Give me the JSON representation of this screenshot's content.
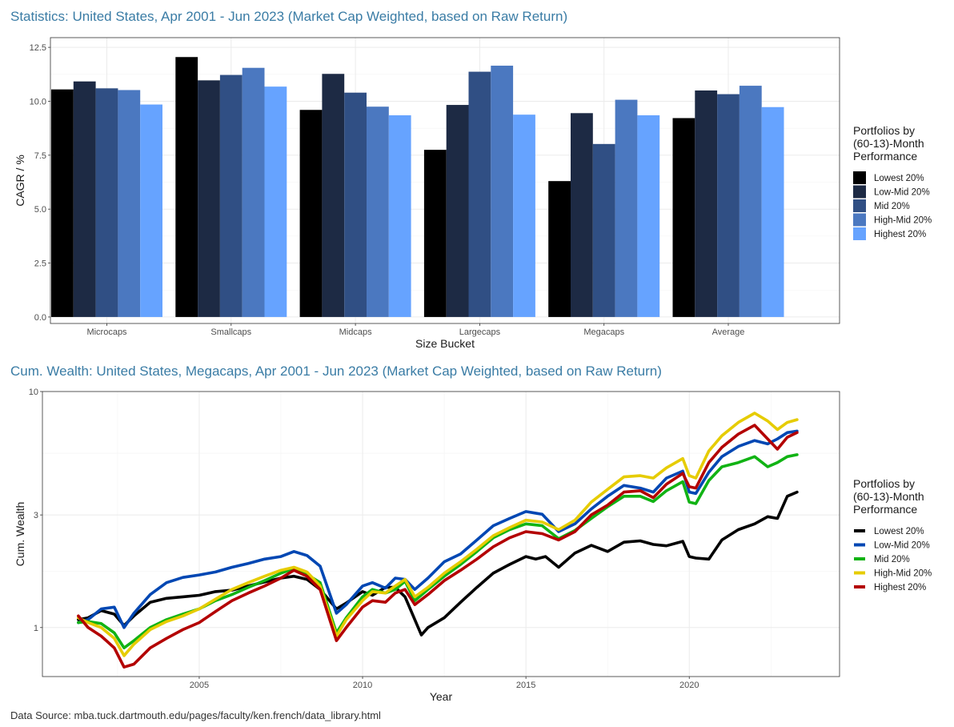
{
  "chart_data": [
    {
      "type": "bar",
      "title": "Statistics: United States, Apr 2001 - Jun 2023 (Market Cap Weighted, based on Raw Return)",
      "xlabel": "Size Bucket",
      "ylabel": "CAGR / %",
      "ylim": [
        -0.3,
        12.95
      ],
      "yticks": [
        "0.0",
        "2.5",
        "5.0",
        "7.5",
        "10.0",
        "12.5"
      ],
      "ytick_values": [
        0,
        2.5,
        5,
        7.5,
        10,
        12.5
      ],
      "categories": [
        "Microcaps",
        "Smallcaps",
        "Midcaps",
        "Largecaps",
        "Megacaps",
        "Average"
      ],
      "grid": true,
      "legend": {
        "title_lines": [
          "Portfolios by",
          "(60-13)-Month",
          "Performance"
        ],
        "placement": "right"
      },
      "series": [
        {
          "name": "Lowest 20%",
          "color": "#000000",
          "values": [
            10.55,
            12.05,
            9.6,
            7.75,
            6.3,
            9.22
          ]
        },
        {
          "name": "Low-Mid 20%",
          "color": "#1d2a44",
          "values": [
            10.92,
            10.97,
            11.27,
            9.83,
            9.45,
            10.5
          ]
        },
        {
          "name": "Mid 20%",
          "color": "#304f84",
          "values": [
            10.6,
            11.22,
            10.4,
            11.37,
            8.02,
            10.33
          ]
        },
        {
          "name": "High-Mid 20%",
          "color": "#4b78c0",
          "values": [
            10.52,
            11.55,
            9.75,
            11.65,
            10.07,
            10.72
          ]
        },
        {
          "name": "Highest 20%",
          "color": "#66a3ff",
          "values": [
            9.85,
            10.68,
            9.35,
            9.38,
            9.35,
            9.73
          ]
        }
      ]
    },
    {
      "type": "line",
      "title": "Cum. Wealth: United States, Megacaps, Apr 2001 - Jun 2023 (Market Cap Weighted, based on Raw Return)",
      "xlabel": "Year",
      "ylabel": "Cum. Wealth",
      "y_scale": "log",
      "ylim": [
        0.62,
        10.0
      ],
      "yticks": [
        "1",
        "3",
        "10"
      ],
      "ytick_values": [
        1,
        3,
        10
      ],
      "xlim": [
        2000.2,
        2024.6
      ],
      "xticks": [
        "2005",
        "2010",
        "2015",
        "2020"
      ],
      "xtick_values": [
        2005,
        2010,
        2015,
        2020
      ],
      "grid": true,
      "legend": {
        "title_lines": [
          "Portfolios by",
          "(60-13)-Month",
          "Performance"
        ],
        "placement": "right"
      },
      "series": [
        {
          "name": "Lowest 20%",
          "color": "#000000",
          "x": [
            2001.3,
            2001.6,
            2002.0,
            2002.4,
            2002.7,
            2003.0,
            2003.5,
            2004.0,
            2004.5,
            2005.0,
            2005.5,
            2006.0,
            2006.5,
            2007.0,
            2007.5,
            2007.9,
            2008.3,
            2008.7,
            2009.2,
            2009.5,
            2010.0,
            2010.3,
            2010.7,
            2011.0,
            2011.3,
            2011.6,
            2011.8,
            2012.0,
            2012.5,
            2013.0,
            2013.5,
            2014.0,
            2014.5,
            2015.0,
            2015.3,
            2015.6,
            2016.0,
            2016.5,
            2017.0,
            2017.5,
            2018.0,
            2018.5,
            2018.9,
            2019.3,
            2019.8,
            2020.0,
            2020.2,
            2020.6,
            2021.0,
            2021.5,
            2022.0,
            2022.4,
            2022.7,
            2023.0,
            2023.3
          ],
          "values": [
            1.08,
            1.1,
            1.18,
            1.14,
            1.02,
            1.12,
            1.28,
            1.33,
            1.35,
            1.37,
            1.42,
            1.44,
            1.5,
            1.56,
            1.62,
            1.65,
            1.6,
            1.45,
            1.2,
            1.27,
            1.42,
            1.37,
            1.48,
            1.48,
            1.35,
            1.08,
            0.93,
            1.0,
            1.1,
            1.28,
            1.48,
            1.7,
            1.85,
            2.0,
            1.95,
            2.0,
            1.8,
            2.07,
            2.23,
            2.1,
            2.3,
            2.33,
            2.25,
            2.22,
            2.32,
            2.0,
            1.97,
            1.95,
            2.35,
            2.6,
            2.75,
            2.95,
            2.9,
            3.6,
            3.75
          ]
        },
        {
          "name": "Low-Mid 20%",
          "color": "#0047b3",
          "x": [
            2001.3,
            2001.6,
            2002.0,
            2002.4,
            2002.7,
            2003.0,
            2003.5,
            2004.0,
            2004.5,
            2005.0,
            2005.5,
            2006.0,
            2006.5,
            2007.0,
            2007.5,
            2007.9,
            2008.3,
            2008.7,
            2009.2,
            2009.5,
            2010.0,
            2010.3,
            2010.7,
            2011.0,
            2011.3,
            2011.6,
            2012.0,
            2012.5,
            2013.0,
            2013.5,
            2014.0,
            2014.5,
            2015.0,
            2015.5,
            2016.0,
            2016.5,
            2017.0,
            2017.5,
            2018.0,
            2018.5,
            2018.9,
            2019.3,
            2019.8,
            2020.0,
            2020.2,
            2020.6,
            2021.0,
            2021.5,
            2022.0,
            2022.4,
            2022.7,
            2023.0,
            2023.3
          ],
          "values": [
            1.05,
            1.08,
            1.2,
            1.22,
            1.0,
            1.15,
            1.38,
            1.55,
            1.63,
            1.67,
            1.72,
            1.8,
            1.87,
            1.95,
            2.0,
            2.1,
            2.02,
            1.82,
            1.15,
            1.25,
            1.5,
            1.55,
            1.47,
            1.62,
            1.6,
            1.45,
            1.62,
            1.9,
            2.05,
            2.35,
            2.7,
            2.9,
            3.1,
            3.02,
            2.55,
            2.75,
            3.18,
            3.6,
            4.0,
            3.9,
            3.75,
            4.3,
            4.6,
            3.75,
            3.7,
            4.55,
            5.3,
            5.85,
            6.2,
            6.0,
            6.3,
            6.7,
            6.8
          ]
        },
        {
          "name": "Mid 20%",
          "color": "#11b314",
          "x": [
            2001.3,
            2001.6,
            2002.0,
            2002.4,
            2002.7,
            2003.0,
            2003.5,
            2004.0,
            2004.5,
            2005.0,
            2005.5,
            2006.0,
            2006.5,
            2007.0,
            2007.5,
            2007.9,
            2008.3,
            2008.7,
            2009.2,
            2009.5,
            2010.0,
            2010.3,
            2010.7,
            2011.0,
            2011.3,
            2011.6,
            2012.0,
            2012.5,
            2013.0,
            2013.5,
            2014.0,
            2014.5,
            2015.0,
            2015.5,
            2016.0,
            2016.5,
            2017.0,
            2017.5,
            2018.0,
            2018.5,
            2018.9,
            2019.3,
            2019.8,
            2020.0,
            2020.2,
            2020.6,
            2021.0,
            2021.5,
            2022.0,
            2022.4,
            2022.7,
            2023.0,
            2023.3
          ],
          "values": [
            1.05,
            1.06,
            1.04,
            0.95,
            0.82,
            0.88,
            1.0,
            1.08,
            1.14,
            1.2,
            1.3,
            1.38,
            1.48,
            1.58,
            1.7,
            1.78,
            1.68,
            1.55,
            0.95,
            1.1,
            1.35,
            1.45,
            1.4,
            1.45,
            1.57,
            1.3,
            1.45,
            1.65,
            1.85,
            2.1,
            2.4,
            2.6,
            2.75,
            2.7,
            2.38,
            2.58,
            2.9,
            3.25,
            3.6,
            3.6,
            3.42,
            3.8,
            4.15,
            3.4,
            3.35,
            4.2,
            4.8,
            5.0,
            5.3,
            4.8,
            5.0,
            5.3,
            5.4
          ]
        },
        {
          "name": "High-Mid 20%",
          "color": "#e6cc00",
          "x": [
            2001.3,
            2001.6,
            2002.0,
            2002.4,
            2002.7,
            2003.0,
            2003.5,
            2004.0,
            2004.5,
            2005.0,
            2005.5,
            2006.0,
            2006.5,
            2007.0,
            2007.5,
            2007.9,
            2008.3,
            2008.7,
            2009.2,
            2009.5,
            2010.0,
            2010.3,
            2010.7,
            2011.0,
            2011.3,
            2011.6,
            2012.0,
            2012.5,
            2013.0,
            2013.5,
            2014.0,
            2014.5,
            2015.0,
            2015.5,
            2016.0,
            2016.5,
            2017.0,
            2017.5,
            2018.0,
            2018.5,
            2018.9,
            2019.3,
            2019.8,
            2020.0,
            2020.2,
            2020.6,
            2021.0,
            2021.5,
            2022.0,
            2022.4,
            2022.7,
            2023.0,
            2023.3
          ],
          "values": [
            1.1,
            1.05,
            1.0,
            0.9,
            0.76,
            0.85,
            0.98,
            1.06,
            1.12,
            1.2,
            1.32,
            1.45,
            1.55,
            1.65,
            1.75,
            1.8,
            1.72,
            1.5,
            0.92,
            1.08,
            1.3,
            1.42,
            1.4,
            1.5,
            1.6,
            1.35,
            1.48,
            1.7,
            1.9,
            2.15,
            2.45,
            2.65,
            2.85,
            2.8,
            2.6,
            2.85,
            3.4,
            3.85,
            4.35,
            4.4,
            4.3,
            4.75,
            5.2,
            4.4,
            4.3,
            5.6,
            6.5,
            7.4,
            8.1,
            7.5,
            6.9,
            7.4,
            7.6
          ]
        },
        {
          "name": "Highest 20%",
          "color": "#b30000",
          "x": [
            2001.3,
            2001.6,
            2002.0,
            2002.4,
            2002.7,
            2003.0,
            2003.5,
            2004.0,
            2004.5,
            2005.0,
            2005.5,
            2006.0,
            2006.5,
            2007.0,
            2007.5,
            2007.9,
            2008.3,
            2008.7,
            2009.2,
            2009.5,
            2010.0,
            2010.3,
            2010.7,
            2011.0,
            2011.3,
            2011.6,
            2012.0,
            2012.5,
            2013.0,
            2013.5,
            2014.0,
            2014.5,
            2015.0,
            2015.5,
            2016.0,
            2016.5,
            2017.0,
            2017.5,
            2018.0,
            2018.5,
            2018.9,
            2019.3,
            2019.8,
            2020.0,
            2020.2,
            2020.6,
            2021.0,
            2021.5,
            2022.0,
            2022.4,
            2022.7,
            2023.0,
            2023.3
          ],
          "values": [
            1.12,
            1.0,
            0.92,
            0.82,
            0.68,
            0.7,
            0.82,
            0.9,
            0.98,
            1.05,
            1.17,
            1.3,
            1.4,
            1.5,
            1.62,
            1.75,
            1.65,
            1.45,
            0.88,
            1.0,
            1.22,
            1.3,
            1.28,
            1.4,
            1.45,
            1.25,
            1.38,
            1.58,
            1.75,
            1.95,
            2.2,
            2.4,
            2.55,
            2.5,
            2.35,
            2.55,
            3.0,
            3.3,
            3.75,
            3.8,
            3.55,
            4.05,
            4.5,
            3.95,
            3.9,
            5.0,
            5.8,
            6.6,
            7.2,
            6.3,
            5.7,
            6.4,
            6.7
          ]
        }
      ]
    }
  ],
  "footer": {
    "source": "Data Source: mba.tuck.dartmouth.edu/pages/faculty/ken.french/data_library.html"
  }
}
